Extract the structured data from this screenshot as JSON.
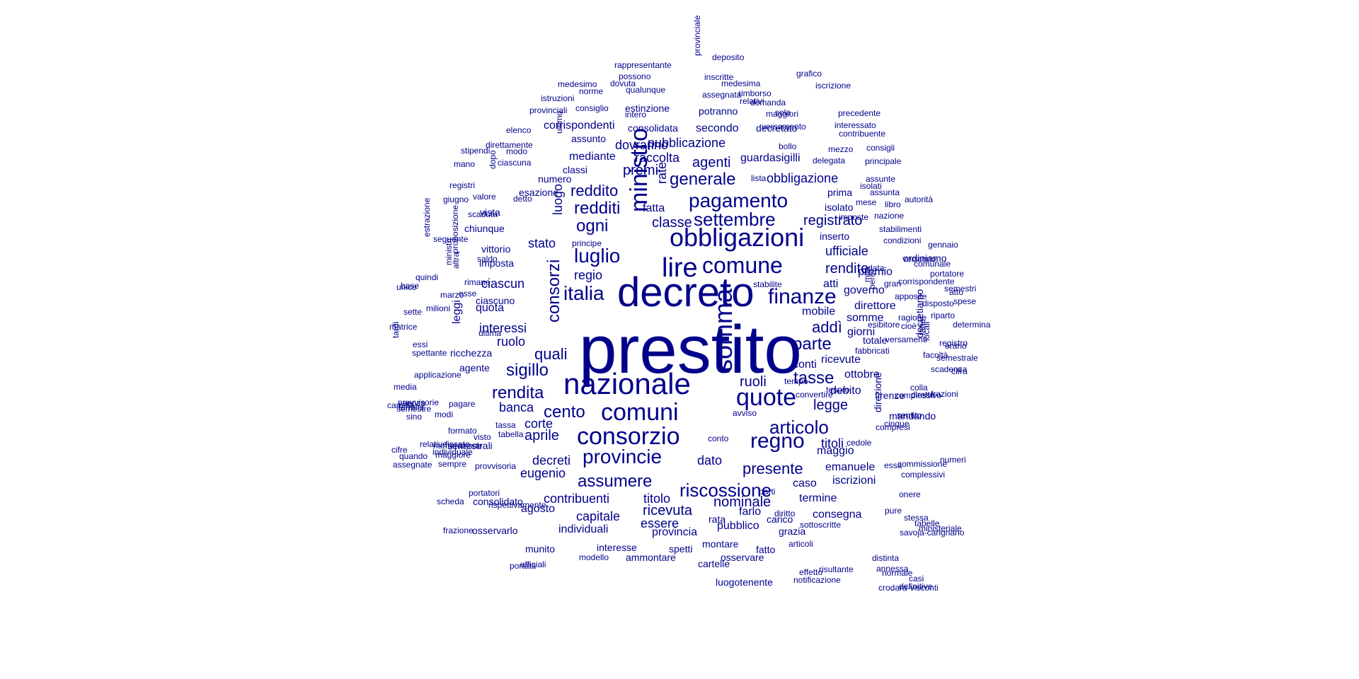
{
  "color": "#00008b",
  "words": [
    "prestito",
    "decreto",
    "nazionale",
    "somma",
    "consorzio",
    "comuni",
    "obbligazioni",
    "quote",
    "provincie",
    "lire",
    "ministro",
    "comune",
    "luglio",
    "regno",
    "finanze",
    "italia",
    "pagamento",
    "settembre",
    "consorzi",
    "riscossione",
    "assumere",
    "ogni",
    "rendita",
    "articolo",
    "parte",
    "tasse",
    "cento",
    "redditi",
    "sigillo",
    "generale",
    "addì",
    "quali",
    "reddito",
    "presente",
    "legge",
    "registrato",
    "rendite",
    "aprile",
    "agenti",
    "ruoli",
    "nominale",
    "classe",
    "interessi",
    "eugenio",
    "decreti",
    "ricevuta",
    "contribuenti",
    "regio",
    "luogo",
    "premi",
    "ciascun",
    "stato",
    "fatta",
    "banca",
    "corte",
    "ruolo",
    "capitale",
    "pubblicazione",
    "rate",
    "obbligazione",
    "ufficiale",
    "dato",
    "essere",
    "raccolta",
    "dovranno",
    "titoli",
    "direttore",
    "titolo",
    "giorni",
    "provincia",
    "guardasigilli",
    "conti",
    "mediante",
    "governo",
    "agosto",
    "termine",
    "debito",
    "emanuele",
    "maggio",
    "quota",
    "ottobre",
    "caso",
    "ricevute",
    "somme",
    "mobile",
    "iscrizioni",
    "consegna",
    "pubblico",
    "farlo",
    "premio",
    "leggi",
    "consolidata",
    "secondo",
    "assunto",
    "totale",
    "corrispondenti",
    "atti",
    "individuali",
    "interesse",
    "montare",
    "ammontare",
    "esazione",
    "numero",
    "estinzione",
    "osservare",
    "cartelle",
    "inserto",
    "firenze",
    "mandando",
    "consolidato",
    "imposta",
    "ciascuno",
    "chiunque",
    "vista",
    "vittorio",
    "classi",
    "semestrali",
    "ordiniamo",
    "isolato",
    "prima",
    "carico",
    "fatto",
    "agente",
    "ricchezza",
    "spetti",
    "grazia",
    "decretato",
    "riparto",
    "rata",
    "luogotenente",
    "articoli",
    "decretiamo",
    "osservarlo",
    "munito",
    "direzione",
    "deposito",
    "rappresentante",
    "possono",
    "dovuta",
    "qualunque",
    "medesimo",
    "norme",
    "istruzioni",
    "assegnata",
    "provinciali",
    "consiglio",
    "intero",
    "medesima",
    "rimborso",
    "inscritte",
    "grafico",
    "iscrizione",
    "relativi",
    "domanda",
    "maggiori",
    "sola",
    "precedente",
    "potranno",
    "provinciale",
    "versamento",
    "interessato",
    "contribuente",
    "elenco",
    "direttamente",
    "stipendi",
    "modo",
    "mano",
    "ciascuna",
    "dopo",
    "ultimo",
    "bollo",
    "mezzo",
    "consigli",
    "delegata",
    "principale",
    "assunte",
    "registri",
    "giugno",
    "valore",
    "detto",
    "lista",
    "isolati",
    "assunta",
    "autorità",
    "mese",
    "scaduta",
    "nazione",
    "imposte",
    "stabilimenti",
    "libro",
    "condizioni",
    "data",
    "principe",
    "gennaio",
    "seguente",
    "verranno",
    "comunale",
    "portatore",
    "estrazione",
    "proposizione",
    "corrispondente",
    "stabilite",
    "marzo",
    "apposite",
    "atto",
    "milioni",
    "ragione",
    "erario",
    "altra",
    "disposto",
    "saldo",
    "cioè",
    "versamenti",
    "fatte",
    "semestrale",
    "scadenza",
    "locali",
    "esse",
    "ultima",
    "tardi",
    "determina",
    "spettante",
    "fabbricati",
    "cifra",
    "mila",
    "però",
    "registro",
    "unico",
    "sette",
    "ministri",
    "spese",
    "matrice",
    "essi",
    "base",
    "quindi",
    "gran",
    "esibitore",
    "rimane",
    "semestri",
    "facoltà",
    "applicazione",
    "tempo",
    "convertire",
    "media",
    "cartella",
    "provvisorie",
    "semestre",
    "termini",
    "tesoro",
    "senza",
    "colla",
    "sino",
    "modi",
    "formato",
    "complessivo",
    "frazioni",
    "tassa",
    "tabella",
    "visto",
    "avviso",
    "dirette",
    "numerazione",
    "individuale",
    "sentito",
    "provvisoria",
    "cinque",
    "cedole",
    "maggiore",
    "compresi",
    "conto",
    "quando",
    "assegnate",
    "numeri",
    "cifre",
    "sempre",
    "essa",
    "fissato",
    "commissione",
    "relative",
    "pagare",
    "complessivi",
    "portatori",
    "scheda",
    "onere",
    "frazione",
    "parti",
    "ufficiali",
    "sottoscritte",
    "modello",
    "diritto",
    "portata",
    "notificazione",
    "effetto",
    "pure",
    "rispettivamente",
    "ministeriale",
    "savoja-carignano",
    "tabelle",
    "stessa",
    "distinta",
    "definitive",
    "crodara-visconti",
    "casi",
    "normale",
    "annessa",
    "risultante",
    "anno",
    "terreni",
    "concorrenti",
    "suddetto",
    "operazioni",
    "convenzione",
    "portate",
    "provvedimento",
    "consorziale",
    "emesse"
  ]
}
